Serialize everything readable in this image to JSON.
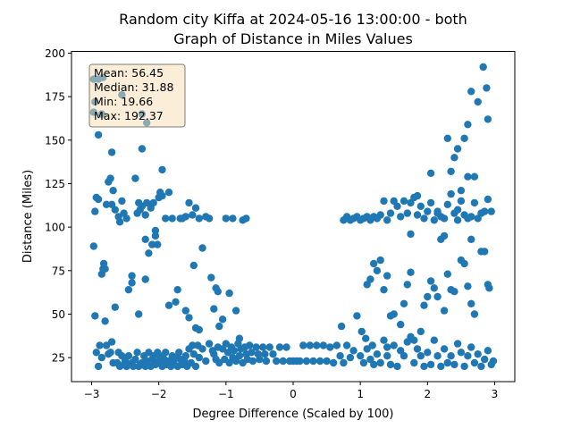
{
  "chart_data": {
    "type": "scatter",
    "title_line1": "Random city Kiffa at 2024-05-16 13:00:00  - both",
    "title_line2": "Graph of Distance in Miles Values",
    "xlabel": "Degree Difference (Scaled by 100)",
    "ylabel": "Distance (Miles)",
    "xlim": [
      -3.3,
      3.3
    ],
    "ylim": [
      11.2,
      201.0
    ],
    "xticks": [
      -3,
      -2,
      -1,
      0,
      1,
      2,
      3
    ],
    "xtick_labels": [
      "−3",
      "−2",
      "−1",
      "0",
      "1",
      "2",
      "3"
    ],
    "yticks": [
      25,
      50,
      75,
      100,
      125,
      150,
      175,
      200
    ],
    "ytick_labels": [
      "25",
      "50",
      "75",
      "100",
      "125",
      "150",
      "175",
      "200"
    ],
    "stats": [
      "Mean: 56.45",
      "Median: 31.88",
      "Min: 19.66",
      "Max: 192.37"
    ],
    "point_color": "#1f77b4",
    "points": [
      [
        -2.97,
        89
      ],
      [
        -2.95,
        49
      ],
      [
        -2.93,
        28
      ],
      [
        -2.9,
        20
      ],
      [
        -2.88,
        32
      ],
      [
        -2.85,
        25
      ],
      [
        -2.83,
        76
      ],
      [
        -2.8,
        46
      ],
      [
        -2.78,
        32
      ],
      [
        -2.75,
        27
      ],
      [
        -2.72,
        28
      ],
      [
        -2.7,
        34
      ],
      [
        -2.68,
        22
      ],
      [
        -2.65,
        54
      ],
      [
        -2.62,
        22
      ],
      [
        -2.6,
        28
      ],
      [
        -2.58,
        20
      ],
      [
        -2.55,
        26
      ],
      [
        -2.52,
        21
      ],
      [
        -2.5,
        23
      ],
      [
        -2.48,
        20
      ],
      [
        -2.45,
        26
      ],
      [
        -2.42,
        21
      ],
      [
        -2.4,
        22
      ],
      [
        -2.38,
        20
      ],
      [
        -2.35,
        24
      ],
      [
        -2.32,
        28
      ],
      [
        -2.3,
        20
      ],
      [
        -2.28,
        21
      ],
      [
        -2.25,
        22
      ],
      [
        -2.22,
        26
      ],
      [
        -2.2,
        20
      ],
      [
        -2.18,
        23
      ],
      [
        -2.15,
        28
      ],
      [
        -2.12,
        20
      ],
      [
        -2.1,
        24
      ],
      [
        -2.08,
        26
      ],
      [
        -2.05,
        21
      ],
      [
        -2.02,
        28
      ],
      [
        -2.0,
        23
      ],
      [
        -1.98,
        26
      ],
      [
        -1.95,
        20
      ],
      [
        -1.92,
        24
      ],
      [
        -1.9,
        28
      ],
      [
        -1.88,
        21
      ],
      [
        -1.85,
        23
      ],
      [
        -1.82,
        20
      ],
      [
        -1.8,
        26
      ],
      [
        -1.78,
        22
      ],
      [
        -1.75,
        25
      ],
      [
        -1.72,
        20
      ],
      [
        -1.7,
        28
      ],
      [
        -1.68,
        24
      ],
      [
        -1.65,
        21
      ],
      [
        -1.62,
        23
      ],
      [
        -1.6,
        26
      ],
      [
        -1.58,
        20
      ],
      [
        -1.55,
        30
      ],
      [
        -1.52,
        22
      ],
      [
        -1.5,
        32
      ],
      [
        -1.48,
        27
      ],
      [
        -1.45,
        20
      ],
      [
        -1.42,
        32
      ],
      [
        -1.4,
        25
      ],
      [
        -1.35,
        30
      ],
      [
        -1.3,
        23
      ],
      [
        -1.25,
        33
      ],
      [
        -1.2,
        29
      ],
      [
        -1.18,
        27
      ],
      [
        -1.15,
        24
      ],
      [
        -1.12,
        31
      ],
      [
        -1.1,
        22
      ],
      [
        -1.05,
        30
      ],
      [
        -1.02,
        24
      ],
      [
        -1.0,
        33
      ],
      [
        -0.97,
        28
      ],
      [
        -0.95,
        22
      ],
      [
        -0.92,
        31
      ],
      [
        -0.9,
        25
      ],
      [
        -0.88,
        29
      ],
      [
        -0.85,
        23
      ],
      [
        -0.82,
        33
      ],
      [
        -0.8,
        26
      ],
      [
        -0.78,
        30
      ],
      [
        -0.75,
        22
      ],
      [
        -0.72,
        31
      ],
      [
        -0.7,
        27
      ],
      [
        -0.68,
        24
      ],
      [
        -0.65,
        32
      ],
      [
        -0.62,
        28
      ],
      [
        -0.6,
        23
      ],
      [
        -0.55,
        31
      ],
      [
        -0.52,
        27
      ],
      [
        -0.5,
        24
      ],
      [
        -0.45,
        31
      ],
      [
        -0.42,
        27
      ],
      [
        -0.4,
        23
      ],
      [
        -0.35,
        31
      ],
      [
        -0.3,
        27
      ],
      [
        -0.25,
        23
      ],
      [
        -0.2,
        31
      ],
      [
        -0.15,
        23
      ],
      [
        -0.1,
        31
      ],
      [
        -0.05,
        23
      ],
      [
        0.0,
        23
      ],
      [
        0.05,
        23
      ],
      [
        0.1,
        23
      ],
      [
        0.15,
        32
      ],
      [
        0.2,
        23
      ],
      [
        0.25,
        32
      ],
      [
        0.3,
        23
      ],
      [
        0.35,
        32
      ],
      [
        0.4,
        23
      ],
      [
        0.45,
        32
      ],
      [
        0.5,
        23
      ],
      [
        0.55,
        31
      ],
      [
        0.6,
        22
      ],
      [
        0.65,
        32
      ],
      [
        0.7,
        26
      ],
      [
        0.72,
        43
      ],
      [
        0.75,
        22
      ],
      [
        0.8,
        32
      ],
      [
        0.85,
        25
      ],
      [
        0.9,
        29
      ],
      [
        0.95,
        49
      ],
      [
        1.0,
        26
      ],
      [
        1.02,
        40
      ],
      [
        1.05,
        22
      ],
      [
        1.08,
        36
      ],
      [
        1.1,
        30
      ],
      [
        1.15,
        24
      ],
      [
        1.18,
        32
      ],
      [
        1.2,
        21
      ],
      [
        1.25,
        27
      ],
      [
        1.3,
        22
      ],
      [
        1.35,
        35
      ],
      [
        1.4,
        26
      ],
      [
        1.45,
        21
      ],
      [
        1.5,
        32
      ],
      [
        1.55,
        20
      ],
      [
        1.6,
        29
      ],
      [
        1.65,
        26
      ],
      [
        1.7,
        34
      ],
      [
        1.75,
        37
      ],
      [
        1.8,
        22
      ],
      [
        1.85,
        30
      ],
      [
        1.9,
        26
      ],
      [
        1.95,
        20
      ],
      [
        2.0,
        28
      ],
      [
        2.05,
        21
      ],
      [
        2.1,
        35
      ],
      [
        2.15,
        26
      ],
      [
        2.2,
        20
      ],
      [
        2.25,
        30
      ],
      [
        2.3,
        22
      ],
      [
        2.35,
        26
      ],
      [
        2.4,
        21
      ],
      [
        2.45,
        33
      ],
      [
        2.5,
        28
      ],
      [
        2.55,
        20
      ],
      [
        2.6,
        26
      ],
      [
        2.65,
        31
      ],
      [
        2.7,
        22
      ],
      [
        2.75,
        27
      ],
      [
        2.8,
        20
      ],
      [
        2.85,
        24
      ],
      [
        2.9,
        29
      ],
      [
        2.95,
        21
      ],
      [
        2.98,
        23
      ],
      [
        1.4,
        31
      ],
      [
        -2.95,
        109
      ],
      [
        -2.93,
        117
      ],
      [
        -2.9,
        116
      ],
      [
        -2.85,
        73
      ],
      [
        -2.82,
        79
      ],
      [
        -2.8,
        76
      ],
      [
        -2.78,
        113
      ],
      [
        -2.75,
        126
      ],
      [
        -2.72,
        128
      ],
      [
        -2.7,
        113
      ],
      [
        -2.68,
        121
      ],
      [
        -2.65,
        110
      ],
      [
        -2.6,
        106
      ],
      [
        -2.58,
        103
      ],
      [
        -2.55,
        115
      ],
      [
        -2.52,
        108
      ],
      [
        -2.48,
        105
      ],
      [
        -2.45,
        64
      ],
      [
        -2.4,
        72
      ],
      [
        -2.35,
        128
      ],
      [
        -2.32,
        108
      ],
      [
        -2.3,
        114
      ],
      [
        -2.28,
        110
      ],
      [
        -2.25,
        112
      ],
      [
        -2.2,
        107
      ],
      [
        -2.18,
        114
      ],
      [
        -2.15,
        85
      ],
      [
        -2.12,
        111
      ],
      [
        -2.1,
        90
      ],
      [
        -2.08,
        114
      ],
      [
        -2.05,
        95
      ],
      [
        -2.02,
        90
      ],
      [
        -2.0,
        117
      ],
      [
        -1.98,
        120
      ],
      [
        -1.95,
        118
      ],
      [
        -1.9,
        105
      ],
      [
        -1.85,
        120
      ],
      [
        -1.8,
        105
      ],
      [
        -1.75,
        57
      ],
      [
        -1.72,
        64
      ],
      [
        -1.68,
        105
      ],
      [
        -1.65,
        105
      ],
      [
        -1.6,
        106
      ],
      [
        -1.55,
        114
      ],
      [
        -1.5,
        107
      ],
      [
        -1.48,
        78
      ],
      [
        -1.45,
        111
      ],
      [
        -1.4,
        105
      ],
      [
        -1.35,
        88
      ],
      [
        -1.3,
        106
      ],
      [
        -1.25,
        105
      ],
      [
        -1.22,
        71
      ],
      [
        -1.18,
        53
      ],
      [
        -1.15,
        65
      ],
      [
        -1.12,
        63
      ],
      [
        -1.1,
        43
      ],
      [
        -1.05,
        47
      ],
      [
        -1.0,
        105
      ],
      [
        -0.95,
        62
      ],
      [
        -0.9,
        105
      ],
      [
        -0.85,
        52
      ],
      [
        -0.8,
        36
      ],
      [
        -0.75,
        104
      ],
      [
        -0.7,
        105
      ],
      [
        -2.7,
        143
      ],
      [
        -2.25,
        145
      ],
      [
        -2.18,
        160
      ],
      [
        -2.25,
        165
      ],
      [
        -2.55,
        176
      ],
      [
        -2.9,
        153
      ],
      [
        -2.97,
        185
      ],
      [
        -2.9,
        185
      ],
      [
        -2.83,
        186
      ],
      [
        -2.95,
        172
      ],
      [
        -2.97,
        166
      ],
      [
        -2.85,
        165
      ],
      [
        -1.95,
        133
      ],
      [
        -2.2,
        70
      ],
      [
        -2.4,
        68
      ],
      [
        -2.3,
        50
      ],
      [
        -1.85,
        55
      ],
      [
        -1.6,
        52
      ],
      [
        -1.55,
        48
      ],
      [
        -1.45,
        42
      ],
      [
        -1.4,
        41
      ],
      [
        -2.2,
        93
      ],
      [
        -2.05,
        98
      ],
      [
        0.75,
        104
      ],
      [
        0.8,
        106
      ],
      [
        0.85,
        104
      ],
      [
        0.9,
        105
      ],
      [
        0.95,
        106
      ],
      [
        1.0,
        104
      ],
      [
        1.05,
        105
      ],
      [
        1.1,
        106
      ],
      [
        1.15,
        104
      ],
      [
        1.2,
        106
      ],
      [
        1.25,
        105
      ],
      [
        1.3,
        107
      ],
      [
        1.35,
        115
      ],
      [
        1.4,
        104
      ],
      [
        1.45,
        108
      ],
      [
        1.5,
        115
      ],
      [
        1.55,
        112
      ],
      [
        1.6,
        106
      ],
      [
        1.65,
        115
      ],
      [
        1.7,
        108
      ],
      [
        1.75,
        114
      ],
      [
        1.8,
        117
      ],
      [
        1.85,
        107
      ],
      [
        1.9,
        112
      ],
      [
        1.95,
        105
      ],
      [
        2.0,
        109
      ],
      [
        2.05,
        114
      ],
      [
        2.1,
        104
      ],
      [
        2.15,
        108
      ],
      [
        2.2,
        106
      ],
      [
        2.25,
        105
      ],
      [
        2.3,
        113
      ],
      [
        2.35,
        119
      ],
      [
        2.4,
        108
      ],
      [
        2.45,
        104
      ],
      [
        2.5,
        115
      ],
      [
        2.55,
        107
      ],
      [
        2.6,
        105
      ],
      [
        2.65,
        106
      ],
      [
        2.7,
        114
      ],
      [
        2.75,
        105
      ],
      [
        2.8,
        108
      ],
      [
        2.85,
        109
      ],
      [
        2.9,
        116
      ],
      [
        2.95,
        109
      ],
      [
        1.1,
        67
      ],
      [
        1.15,
        70
      ],
      [
        1.2,
        79
      ],
      [
        1.25,
        75
      ],
      [
        1.3,
        81
      ],
      [
        1.35,
        64
      ],
      [
        1.4,
        72
      ],
      [
        1.45,
        49
      ],
      [
        1.5,
        50
      ],
      [
        1.6,
        44
      ],
      [
        1.65,
        56
      ],
      [
        1.7,
        67
      ],
      [
        1.75,
        74
      ],
      [
        1.8,
        35
      ],
      [
        1.9,
        40
      ],
      [
        1.95,
        55
      ],
      [
        2.0,
        60
      ],
      [
        2.05,
        69
      ],
      [
        2.1,
        65
      ],
      [
        2.15,
        60
      ],
      [
        2.25,
        52
      ],
      [
        2.3,
        73
      ],
      [
        2.35,
        64
      ],
      [
        2.4,
        63
      ],
      [
        2.5,
        81
      ],
      [
        2.55,
        79
      ],
      [
        2.6,
        66
      ],
      [
        2.65,
        56
      ],
      [
        2.7,
        50
      ],
      [
        2.8,
        86
      ],
      [
        2.85,
        86
      ],
      [
        2.9,
        67
      ],
      [
        2.92,
        65
      ],
      [
        1.85,
        118
      ],
      [
        2.05,
        131
      ],
      [
        2.15,
        109
      ],
      [
        2.25,
        95
      ],
      [
        2.3,
        151
      ],
      [
        2.4,
        140
      ],
      [
        2.45,
        145
      ],
      [
        2.5,
        121
      ],
      [
        2.55,
        151
      ],
      [
        2.6,
        159
      ],
      [
        2.65,
        178
      ],
      [
        2.75,
        172
      ],
      [
        2.83,
        192
      ],
      [
        2.88,
        180
      ],
      [
        2.9,
        162
      ],
      [
        2.45,
        110
      ],
      [
        2.35,
        132
      ],
      [
        2.2,
        93
      ],
      [
        2.6,
        129
      ],
      [
        2.65,
        93
      ],
      [
        2.7,
        129
      ],
      [
        1.75,
        96
      ]
    ]
  }
}
